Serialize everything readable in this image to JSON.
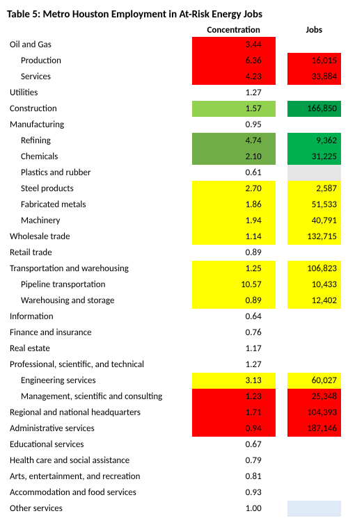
{
  "title": "Table 5: Metro Houston Employment in At-Risk Energy Jobs",
  "headers": {
    "concentration": "Concentration",
    "jobs": "Jobs"
  },
  "rows": [
    {
      "label": "Oil and Gas",
      "indent": 0,
      "conc": "3.44",
      "conc_bg": "bg-red",
      "jobs": "",
      "jobs_bg": ""
    },
    {
      "label": "Production",
      "indent": 1,
      "conc": "6.36",
      "conc_bg": "bg-red",
      "jobs": "16,015",
      "jobs_bg": "bg-red"
    },
    {
      "label": "Services",
      "indent": 1,
      "conc": "4.23",
      "conc_bg": "bg-red",
      "jobs": "33,884",
      "jobs_bg": "bg-red"
    },
    {
      "label": "Utilities",
      "indent": 0,
      "conc": "1.27",
      "conc_bg": "",
      "jobs": "",
      "jobs_bg": ""
    },
    {
      "label": "Construction",
      "indent": 0,
      "conc": "1.57",
      "conc_bg": "bg-green3",
      "jobs": "166,850",
      "jobs_bg": "bg-green4"
    },
    {
      "label": "Manufacturing",
      "indent": 0,
      "conc": "0.95",
      "conc_bg": "",
      "jobs": "",
      "jobs_bg": ""
    },
    {
      "label": "Refining",
      "indent": 1,
      "conc": "4.74",
      "conc_bg": "bg-green1",
      "jobs": "9,362",
      "jobs_bg": "bg-green2"
    },
    {
      "label": "Chemicals",
      "indent": 1,
      "conc": "2.10",
      "conc_bg": "bg-green1",
      "jobs": "31,225",
      "jobs_bg": "bg-green2"
    },
    {
      "label": "Plastics and rubber",
      "indent": 1,
      "conc": "0.61",
      "conc_bg": "",
      "jobs": "",
      "jobs_bg": "bg-grey"
    },
    {
      "label": "Steel products",
      "indent": 1,
      "conc": "2.70",
      "conc_bg": "bg-yellow",
      "jobs": "2,587",
      "jobs_bg": "bg-yellow"
    },
    {
      "label": "Fabricated metals",
      "indent": 1,
      "conc": "1.86",
      "conc_bg": "bg-yellow",
      "jobs": "51,533",
      "jobs_bg": "bg-yellow"
    },
    {
      "label": "Machinery",
      "indent": 1,
      "conc": "1.94",
      "conc_bg": "bg-yellow",
      "jobs": "40,791",
      "jobs_bg": "bg-yellow"
    },
    {
      "label": "Wholesale trade",
      "indent": 0,
      "conc": "1.14",
      "conc_bg": "bg-yellow",
      "jobs": "132,715",
      "jobs_bg": "bg-yellow"
    },
    {
      "label": "Retail trade",
      "indent": 0,
      "conc": "0.89",
      "conc_bg": "",
      "jobs": "",
      "jobs_bg": ""
    },
    {
      "label": "Transportation and warehousing",
      "indent": 0,
      "conc": "1.25",
      "conc_bg": "bg-yellow",
      "jobs": "106,823",
      "jobs_bg": "bg-yellow"
    },
    {
      "label": "Pipeline transportation",
      "indent": 1,
      "conc": "10.57",
      "conc_bg": "bg-yellow",
      "jobs": "10,433",
      "jobs_bg": "bg-yellow"
    },
    {
      "label": "Warehousing and storage",
      "indent": 1,
      "conc": "0.89",
      "conc_bg": "bg-yellow",
      "jobs": "12,402",
      "jobs_bg": "bg-yellow"
    },
    {
      "label": "Information",
      "indent": 0,
      "conc": "0.64",
      "conc_bg": "",
      "jobs": "",
      "jobs_bg": ""
    },
    {
      "label": "Finance and insurance",
      "indent": 0,
      "conc": "0.76",
      "conc_bg": "",
      "jobs": "",
      "jobs_bg": ""
    },
    {
      "label": "Real estate",
      "indent": 0,
      "conc": "1.17",
      "conc_bg": "",
      "jobs": "",
      "jobs_bg": ""
    },
    {
      "label": "Professional, scientific, and technical",
      "indent": 0,
      "conc": "1.27",
      "conc_bg": "",
      "jobs": "",
      "jobs_bg": ""
    },
    {
      "label": "Engineering services",
      "indent": 1,
      "conc": "3.13",
      "conc_bg": "bg-yellow",
      "jobs": "60,027",
      "jobs_bg": "bg-yellow"
    },
    {
      "label": "Management, scientific and consulting",
      "indent": 1,
      "conc": "1.23",
      "conc_bg": "bg-red",
      "jobs": "25,348",
      "jobs_bg": "bg-red"
    },
    {
      "label": "Regional and national headquarters",
      "indent": 0,
      "conc": "1.71",
      "conc_bg": "bg-red",
      "jobs": "104,393",
      "jobs_bg": "bg-red"
    },
    {
      "label": "Administrative services",
      "indent": 0,
      "conc": "0.94",
      "conc_bg": "bg-red",
      "jobs": "187,146",
      "jobs_bg": "bg-red"
    },
    {
      "label": "Educational services",
      "indent": 0,
      "conc": "0.67",
      "conc_bg": "",
      "jobs": "",
      "jobs_bg": ""
    },
    {
      "label": "Health care and social assistance",
      "indent": 0,
      "conc": "0.79",
      "conc_bg": "",
      "jobs": "",
      "jobs_bg": ""
    },
    {
      "label": "Arts, entertainment, and recreation",
      "indent": 0,
      "conc": "0.81",
      "conc_bg": "",
      "jobs": "",
      "jobs_bg": ""
    },
    {
      "label": "Accommodation and food services",
      "indent": 0,
      "conc": "0.93",
      "conc_bg": "",
      "jobs": "",
      "jobs_bg": ""
    },
    {
      "label": "Other services",
      "indent": 0,
      "conc": "1.00",
      "conc_bg": "",
      "jobs": "",
      "jobs_bg": "bg-pale"
    }
  ]
}
